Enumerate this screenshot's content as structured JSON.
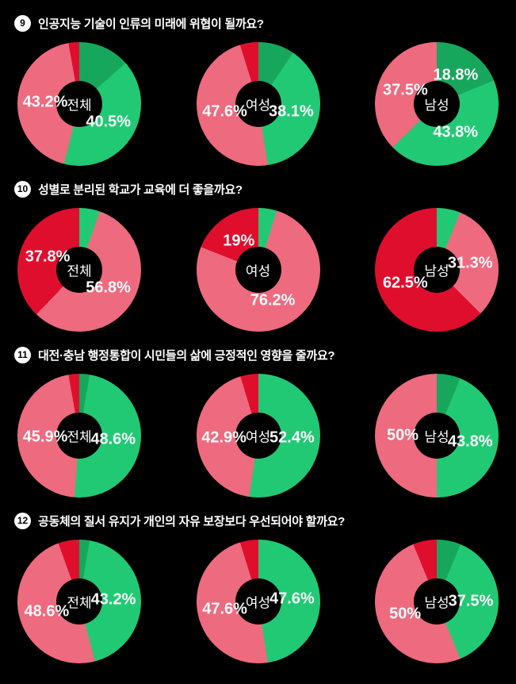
{
  "colors": {
    "pink": "#ee6a7e",
    "green": "#22c974",
    "dark_green": "#17a75c",
    "red": "#e00e2d",
    "background": "#000000",
    "text": "#ffffff",
    "badge_bg": "#ffffff",
    "badge_text": "#000000"
  },
  "chart_data": [
    {
      "type": "pie",
      "subtype": "donut",
      "question_number": "9",
      "title": "인공지능 기술이 인류의 미래에 위협이 될까요?",
      "segment_order_note": "segments drawn clockwise from 12 o'clock",
      "charts": [
        {
          "group": "전체",
          "segments": [
            {
              "name": "strong-agree",
              "color": "dark_green",
              "value": 13.5,
              "label": ""
            },
            {
              "name": "agree",
              "color": "green",
              "value": 40.5,
              "label": "40.5%"
            },
            {
              "name": "disagree",
              "color": "pink",
              "value": 43.2,
              "label": "43.2%"
            },
            {
              "name": "strong-disagree",
              "color": "red",
              "value": 2.7,
              "label": ""
            }
          ]
        },
        {
          "group": "여성",
          "segments": [
            {
              "name": "strong-agree",
              "color": "dark_green",
              "value": 9.5,
              "label": ""
            },
            {
              "name": "agree",
              "color": "green",
              "value": 38.1,
              "label": "38.1%"
            },
            {
              "name": "disagree",
              "color": "pink",
              "value": 47.6,
              "label": "47.6%"
            },
            {
              "name": "strong-disagree",
              "color": "red",
              "value": 4.8,
              "label": ""
            }
          ]
        },
        {
          "group": "남성",
          "segments": [
            {
              "name": "strong-agree",
              "color": "dark_green",
              "value": 18.8,
              "label": "18.8%"
            },
            {
              "name": "agree",
              "color": "green",
              "value": 43.8,
              "label": "43.8%"
            },
            {
              "name": "disagree",
              "color": "pink",
              "value": 37.5,
              "label": "37.5%"
            }
          ]
        }
      ]
    },
    {
      "type": "pie",
      "subtype": "donut",
      "question_number": "10",
      "title": "성별로 분리된 학교가 교육에 더 좋을까요?",
      "charts": [
        {
          "group": "전체",
          "segments": [
            {
              "name": "agree",
              "color": "green",
              "value": 5.4,
              "label": ""
            },
            {
              "name": "disagree",
              "color": "pink",
              "value": 56.8,
              "label": "56.8%"
            },
            {
              "name": "strong-disagree",
              "color": "red",
              "value": 37.8,
              "label": "37.8%"
            }
          ]
        },
        {
          "group": "여성",
          "segments": [
            {
              "name": "agree",
              "color": "green",
              "value": 4.8,
              "label": ""
            },
            {
              "name": "disagree",
              "color": "pink",
              "value": 76.2,
              "label": "76.2%"
            },
            {
              "name": "strong-disagree",
              "color": "red",
              "value": 19.0,
              "label": "19%"
            }
          ]
        },
        {
          "group": "남성",
          "segments": [
            {
              "name": "agree",
              "color": "green",
              "value": 6.2,
              "label": ""
            },
            {
              "name": "disagree",
              "color": "pink",
              "value": 31.3,
              "label": "31.3%"
            },
            {
              "name": "strong-disagree",
              "color": "red",
              "value": 62.5,
              "label": "62.5%"
            }
          ]
        }
      ]
    },
    {
      "type": "pie",
      "subtype": "donut",
      "question_number": "11",
      "title": "대전·충남 행정통합이 시민들의 삶에 긍정적인 영향을 줄까요?",
      "charts": [
        {
          "group": "전체",
          "segments": [
            {
              "name": "strong-agree",
              "color": "dark_green",
              "value": 2.7,
              "label": ""
            },
            {
              "name": "agree",
              "color": "green",
              "value": 48.6,
              "label": "48.6%"
            },
            {
              "name": "disagree",
              "color": "pink",
              "value": 45.9,
              "label": "45.9%"
            },
            {
              "name": "strong-disagree",
              "color": "red",
              "value": 2.7,
              "label": ""
            }
          ]
        },
        {
          "group": "여성",
          "segments": [
            {
              "name": "agree",
              "color": "green",
              "value": 52.4,
              "label": "52.4%"
            },
            {
              "name": "disagree",
              "color": "pink",
              "value": 42.9,
              "label": "42.9%"
            },
            {
              "name": "strong-disagree",
              "color": "red",
              "value": 4.8,
              "label": ""
            }
          ]
        },
        {
          "group": "남성",
          "segments": [
            {
              "name": "strong-agree",
              "color": "dark_green",
              "value": 6.2,
              "label": ""
            },
            {
              "name": "agree",
              "color": "green",
              "value": 43.8,
              "label": "43.8%"
            },
            {
              "name": "disagree",
              "color": "pink",
              "value": 50.0,
              "label": "50%"
            }
          ]
        }
      ]
    },
    {
      "type": "pie",
      "subtype": "donut",
      "question_number": "12",
      "title": "공동체의 질서 유지가 개인의 자유 보장보다 우선되어야 할까요?",
      "charts": [
        {
          "group": "전체",
          "segments": [
            {
              "name": "strong-agree",
              "color": "dark_green",
              "value": 2.7,
              "label": ""
            },
            {
              "name": "agree",
              "color": "green",
              "value": 43.2,
              "label": "43.2%"
            },
            {
              "name": "disagree",
              "color": "pink",
              "value": 48.6,
              "label": "48.6%"
            },
            {
              "name": "strong-disagree",
              "color": "red",
              "value": 5.4,
              "label": ""
            }
          ]
        },
        {
          "group": "여성",
          "segments": [
            {
              "name": "agree",
              "color": "green",
              "value": 47.6,
              "label": "47.6%"
            },
            {
              "name": "disagree",
              "color": "pink",
              "value": 47.6,
              "label": "47.6%"
            },
            {
              "name": "strong-disagree",
              "color": "red",
              "value": 4.8,
              "label": ""
            }
          ]
        },
        {
          "group": "남성",
          "segments": [
            {
              "name": "strong-agree",
              "color": "dark_green",
              "value": 6.3,
              "label": ""
            },
            {
              "name": "agree",
              "color": "green",
              "value": 37.5,
              "label": "37.5%"
            },
            {
              "name": "disagree",
              "color": "pink",
              "value": 50.0,
              "label": "50%"
            },
            {
              "name": "strong-disagree",
              "color": "red",
              "value": 6.2,
              "label": ""
            }
          ]
        }
      ]
    }
  ]
}
